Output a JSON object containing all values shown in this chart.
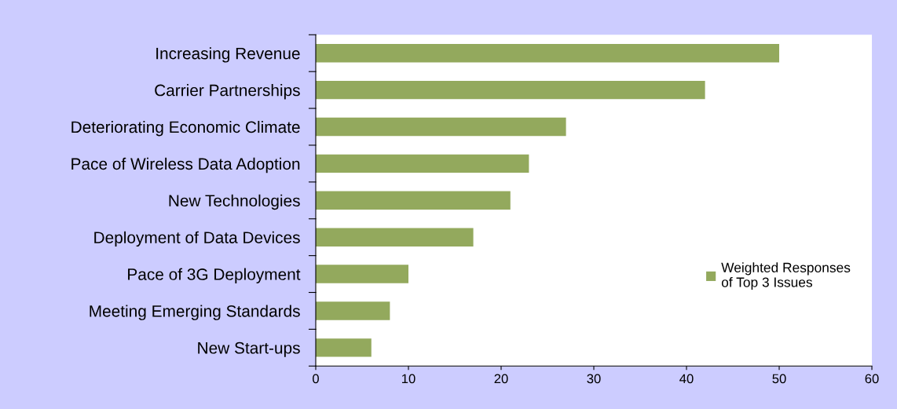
{
  "chart_data": {
    "type": "bar",
    "orientation": "horizontal",
    "categories": [
      "Increasing Revenue",
      "Carrier Partnerships",
      "Deteriorating Economic Climate",
      "Pace of Wireless Data Adoption",
      "New Technologies",
      "Deployment of Data Devices",
      "Pace of 3G Deployment",
      "Meeting Emerging Standards",
      "New Start-ups"
    ],
    "series": [
      {
        "name": "Weighted Responses\nof Top 3 Issues",
        "color": "#93a95d",
        "values": [
          50,
          42,
          27,
          23,
          21,
          17,
          10,
          8,
          6
        ]
      }
    ],
    "xlim": [
      0,
      60
    ],
    "xticks": [
      0,
      10,
      20,
      30,
      40,
      50,
      60
    ],
    "grid": false,
    "legend": "right"
  }
}
